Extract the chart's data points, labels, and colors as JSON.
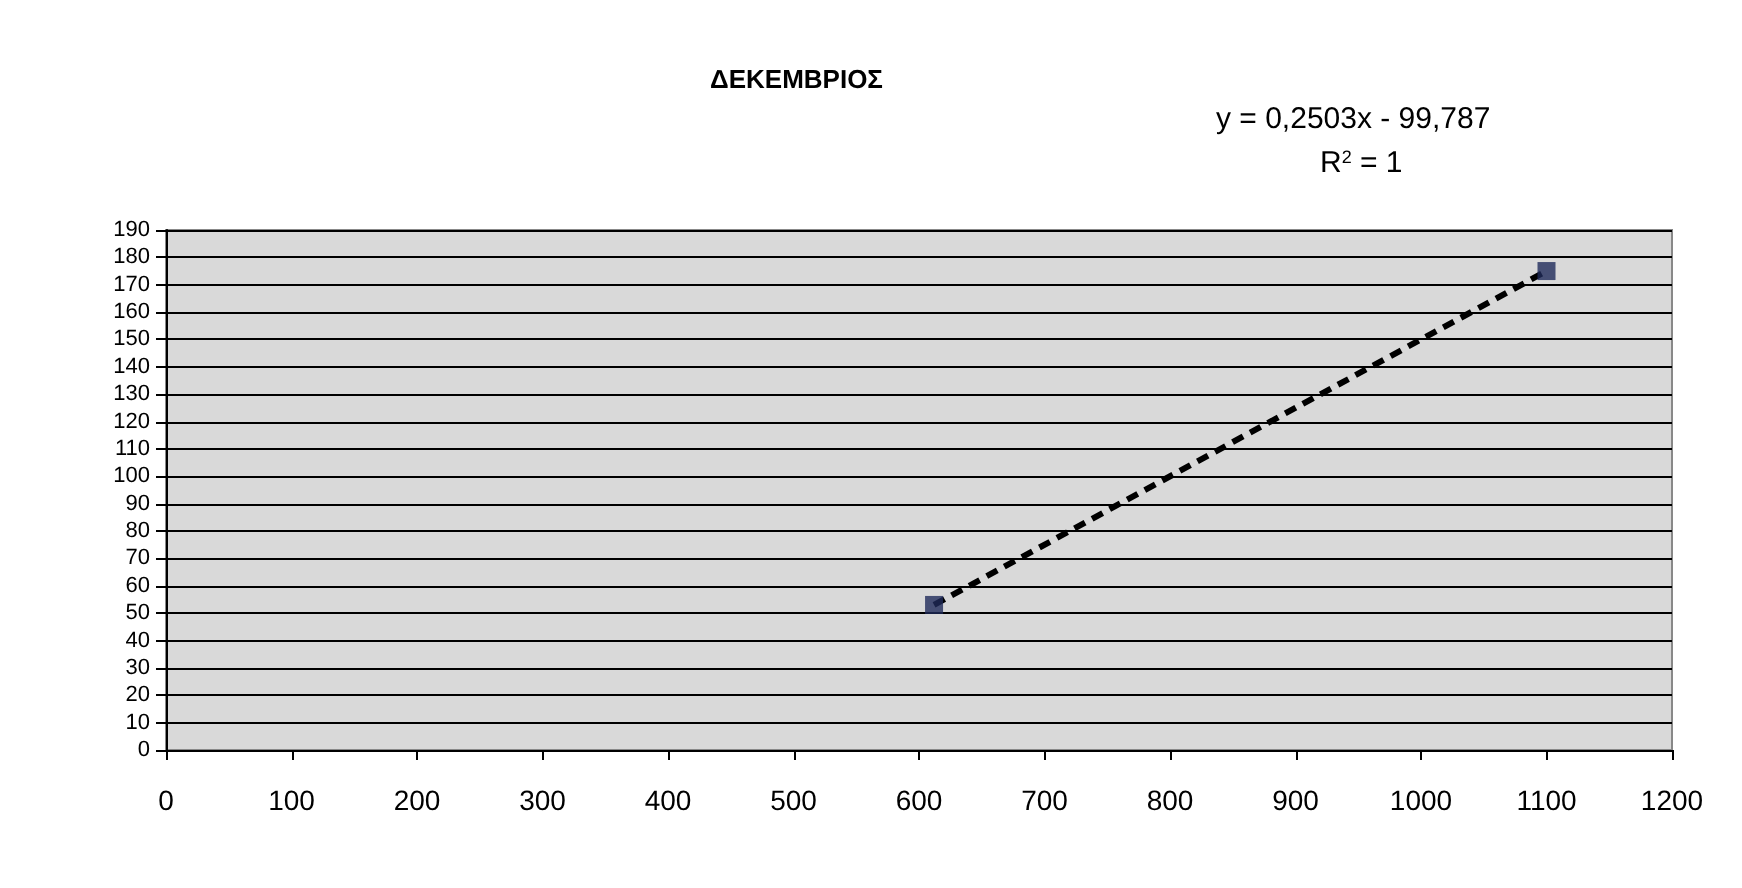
{
  "chart_data": {
    "type": "scatter",
    "title": "ΔΕΚΕΜΒΡΙΟΣ",
    "annotations": [
      "y = 0,2503x - 99,787",
      "R$^{2}$ = 1"
    ],
    "series": [
      {
        "color": "#1f2a5a",
        "marker": "square",
        "values": [
          53,
          175
        ]
      },
      {
        "type": "line",
        "color": "#000000",
        "line_style": "dashed",
        "marker": "none",
        "values": [
          53,
          175
        ]
      }
    ],
    "x": [
      612,
      1100
    ],
    "xlim": [
      0,
      1200
    ],
    "xticks": [
      0,
      100,
      200,
      300,
      400,
      500,
      600,
      700,
      800,
      900,
      1000,
      1100,
      1200
    ],
    "ylim": [
      0,
      190
    ],
    "yticks": [
      0,
      10,
      20,
      30,
      40,
      50,
      60,
      70,
      80,
      90,
      100,
      110,
      120,
      130,
      140,
      150,
      160,
      170,
      180,
      190
    ],
    "grid": "y"
  }
}
